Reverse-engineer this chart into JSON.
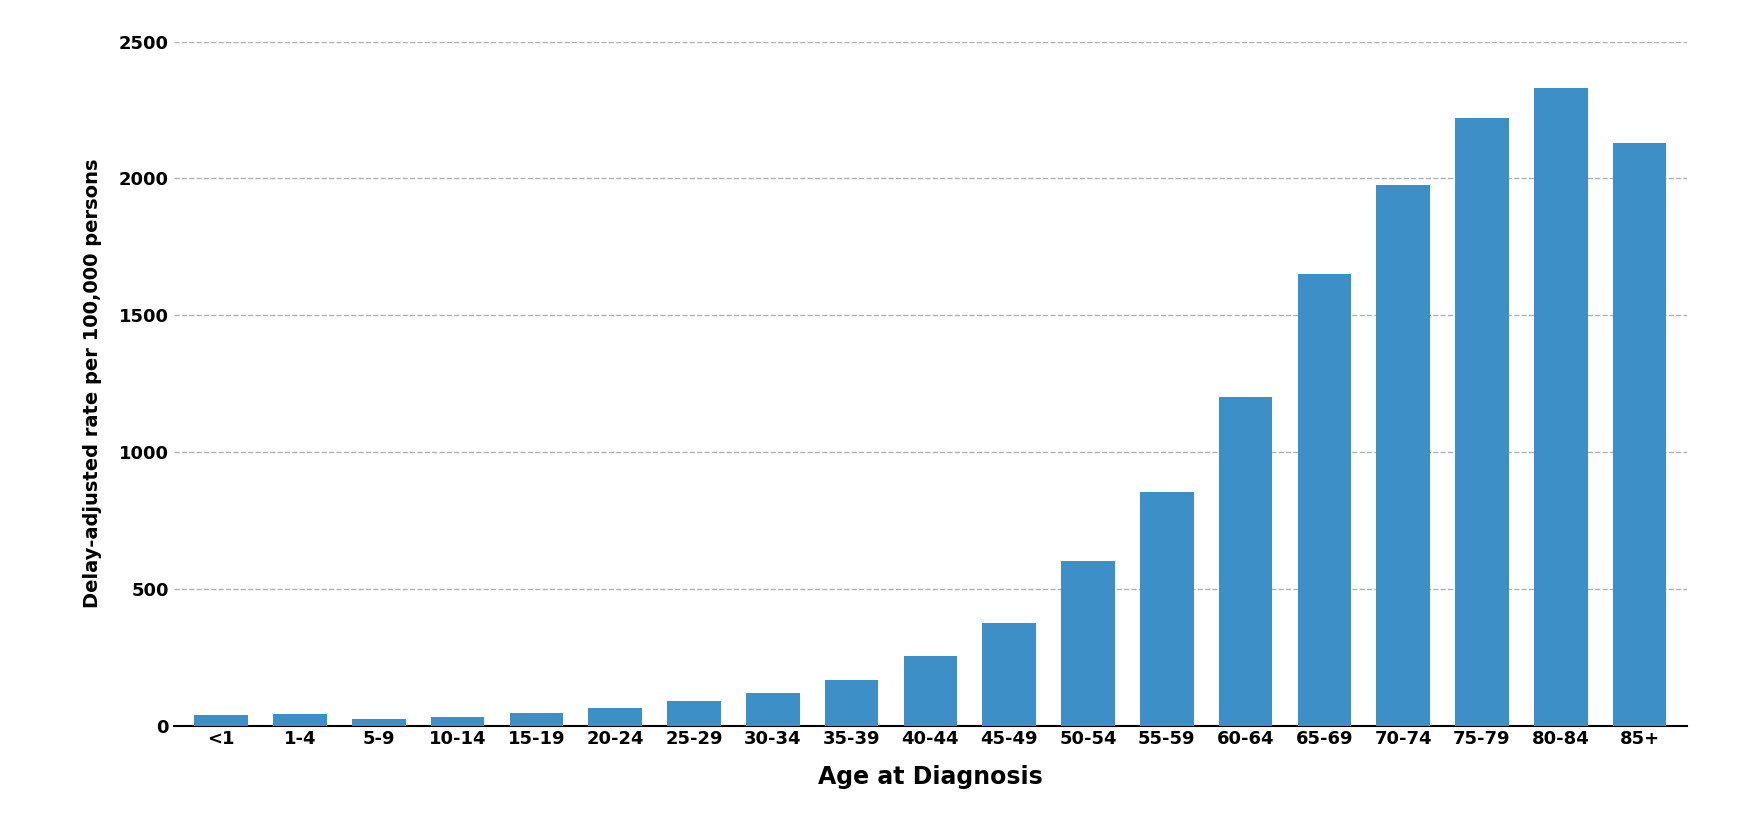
{
  "categories": [
    "<1",
    "1-4",
    "5-9",
    "10-14",
    "15-19",
    "20-24",
    "25-29",
    "30-34",
    "35-39",
    "40-44",
    "45-49",
    "50-54",
    "55-59",
    "60-64",
    "65-69",
    "70-74",
    "75-79",
    "80-84",
    "85+"
  ],
  "values": [
    40,
    42,
    25,
    30,
    45,
    65,
    90,
    120,
    165,
    255,
    375,
    600,
    855,
    1200,
    1650,
    1975,
    2220,
    2330,
    2130
  ],
  "bar_color": "#3d8fc8",
  "xlabel": "Age at Diagnosis",
  "ylabel": "Delay-adjusted rate per 100,000 persons",
  "ylim": [
    0,
    2500
  ],
  "yticks": [
    0,
    500,
    1000,
    1500,
    2000,
    2500
  ],
  "background_color": "#ffffff",
  "grid_color": "#b0b0b0",
  "xlabel_fontsize": 17,
  "ylabel_fontsize": 14,
  "tick_fontsize": 13,
  "bar_width": 0.68
}
